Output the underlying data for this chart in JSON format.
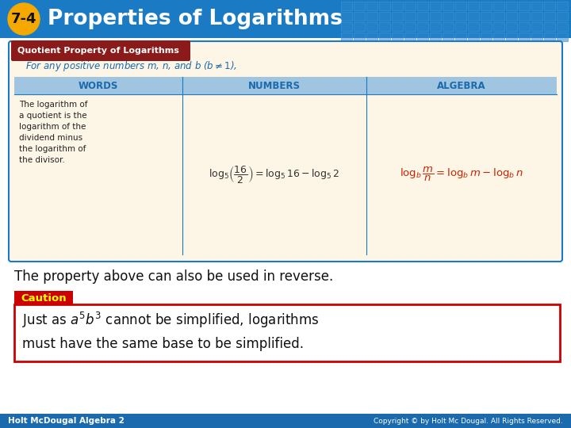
{
  "title": "Properties of Logarithms",
  "section_num": "7-4",
  "header_bg": "#1a7bc4",
  "header_text_color": "#ffffff",
  "badge_color": "#f5a800",
  "table_bg": "#fdf5e6",
  "table_border": "#1a7bc4",
  "table_header_bg": "#9fc5e0",
  "box_tab_color": "#8b1a1a",
  "box_tab_text": "Quotient Property of Logarithms",
  "condition_text": "For any positive numbers $m$, $n$, and $b$ ($b \\neq 1$),",
  "col_headers": [
    "WORDS",
    "NUMBERS",
    "ALGEBRA"
  ],
  "words_lines": [
    "The logarithm of",
    "a quotient is the",
    "logarithm of the",
    "dividend minus",
    "the logarithm of",
    "the divisor."
  ],
  "reverse_text": "The property above can also be used in reverse.",
  "caution_label": "Caution",
  "caution_bg": "#cc0000",
  "caution_text_color": "#ffff00",
  "caution_box_border": "#cc0000",
  "footer_bg": "#1a6aad",
  "footer_left": "Holt McDougal Algebra 2",
  "footer_right": "Copyright © by Holt Mc Dougal. All Rights Reserved.",
  "footer_text_color": "#ffffff",
  "main_bg": "#ffffff",
  "tile_color": "#2e86cc",
  "tile_edge": "#3a96dc"
}
